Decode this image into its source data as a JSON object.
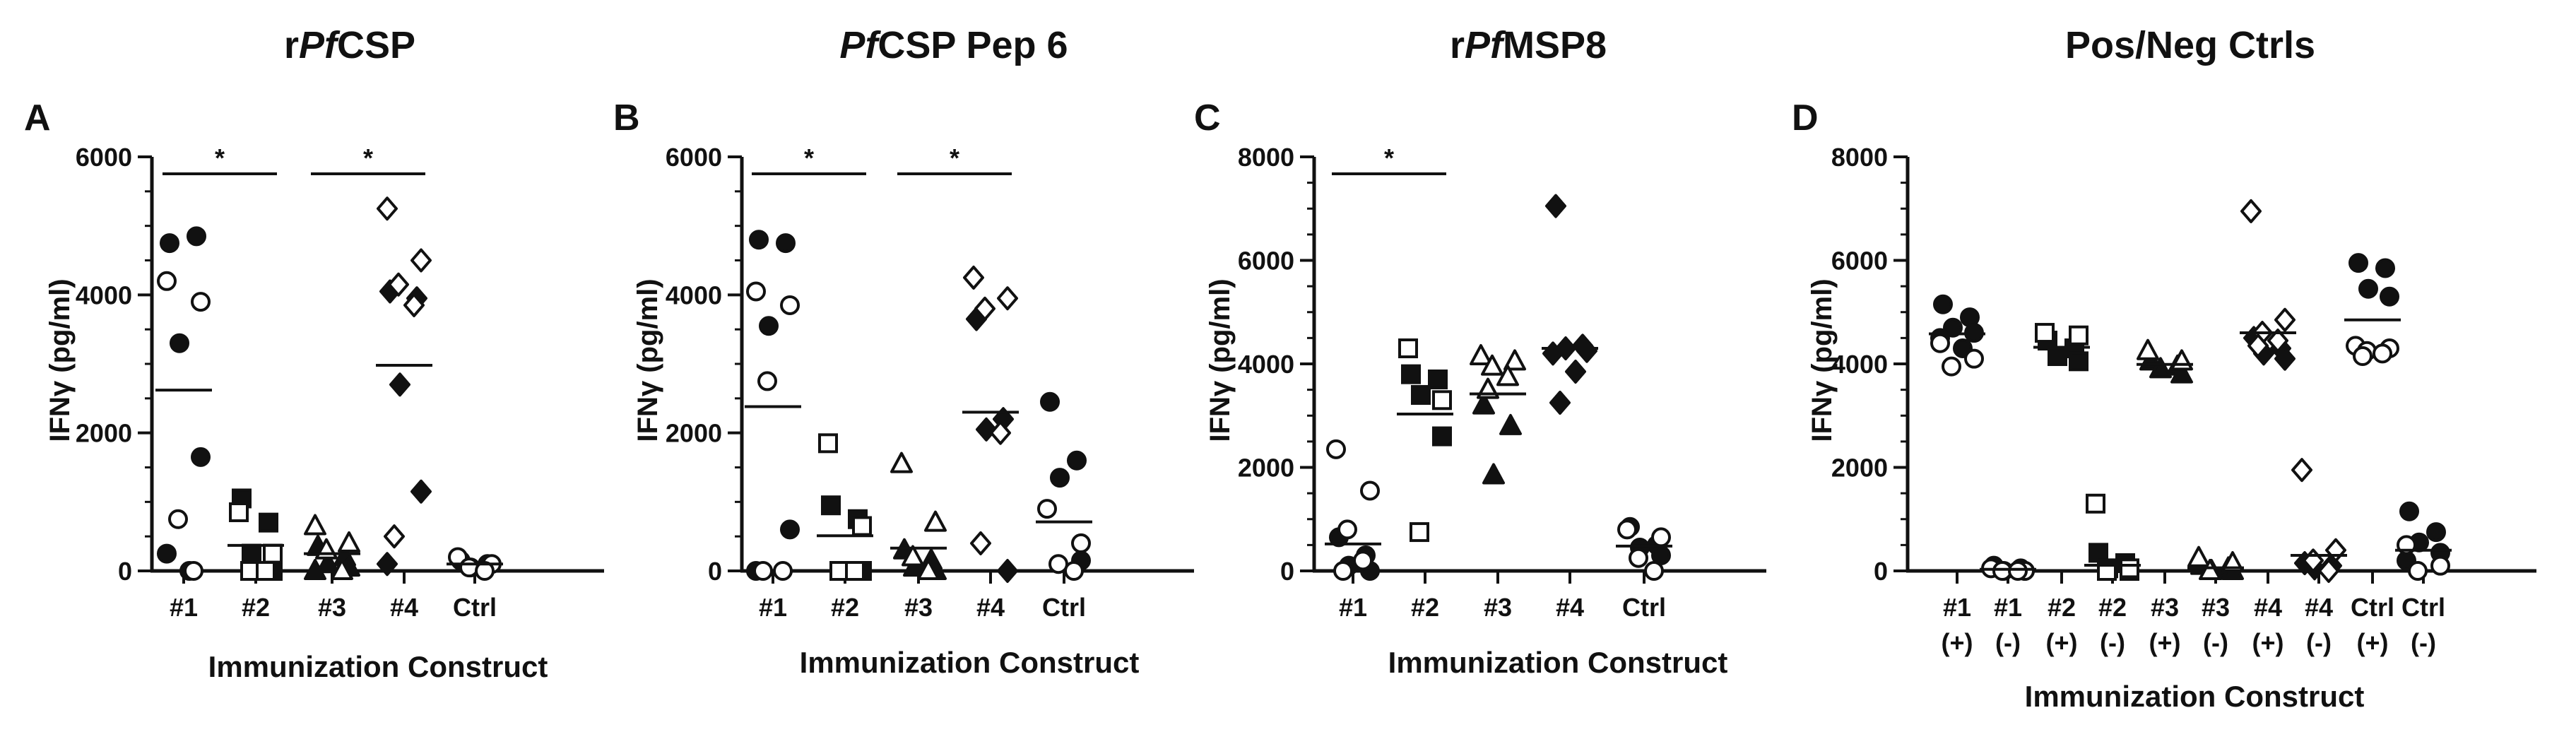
{
  "figure": {
    "ylabel": "IFNγ (pg/ml)",
    "xlabel": "Immunization Construct"
  },
  "chart_data": [
    {
      "type": "scatter",
      "panel": "A",
      "title": "rPfCSP",
      "title_parts": [
        {
          "t": "r",
          "i": false
        },
        {
          "t": "Pf",
          "i": true
        },
        {
          "t": "CSP",
          "i": false
        }
      ],
      "xlabel": "Immunization Construct",
      "ylabel": "IFNγ (pg/ml)",
      "ylim": [
        0,
        6000
      ],
      "yticks": [
        0,
        2000,
        4000,
        6000
      ],
      "categories": [
        "#1",
        "#2",
        "#3",
        "#4",
        "Ctrl"
      ],
      "groups": [
        {
          "category": "#1",
          "filled_marker": "circle",
          "open_marker": "circle",
          "filled": [
            4750,
            4850,
            3300,
            1650,
            250,
            0
          ],
          "open": [
            4200,
            3900,
            750,
            0
          ],
          "mean": 2620
        },
        {
          "category": "#2",
          "filled_marker": "square",
          "open_marker": "square",
          "filled": [
            1050,
            700,
            250,
            0
          ],
          "open": [
            850,
            250,
            0,
            0
          ],
          "mean": 370
        },
        {
          "category": "#3",
          "filled_marker": "triangle",
          "open_marker": "triangle",
          "filled": [
            350,
            200,
            100,
            50,
            0
          ],
          "open": [
            650,
            400,
            300,
            0
          ],
          "mean": 250
        },
        {
          "category": "#4",
          "filled_marker": "diamond",
          "open_marker": "diamond",
          "filled": [
            4050,
            3950,
            2700,
            1150,
            100
          ],
          "open": [
            5250,
            4500,
            4150,
            3850,
            500
          ],
          "mean": 2980
        },
        {
          "category": "Ctrl",
          "filled_marker": "circle",
          "open_marker": "circle",
          "filled": [
            150,
            100,
            50
          ],
          "open": [
            200,
            100,
            50,
            0
          ],
          "mean": 100
        }
      ],
      "significance": [
        {
          "from": "#1",
          "to": "#2",
          "label": "*"
        },
        {
          "from": "#3",
          "to": "#4",
          "label": "*"
        }
      ]
    },
    {
      "type": "scatter",
      "panel": "B",
      "title": "PfCSP Pep 6",
      "title_parts": [
        {
          "t": "Pf",
          "i": true
        },
        {
          "t": "CSP Pep 6",
          "i": false
        }
      ],
      "xlabel": "Immunization Construct",
      "ylabel": "IFNγ (pg/ml)",
      "ylim": [
        0,
        6000
      ],
      "yticks": [
        0,
        2000,
        4000,
        6000
      ],
      "categories": [
        "#1",
        "#2",
        "#3",
        "#4",
        "Ctrl"
      ],
      "groups": [
        {
          "category": "#1",
          "filled_marker": "circle",
          "open_marker": "circle",
          "filled": [
            4800,
            4750,
            3550,
            600,
            0
          ],
          "open": [
            4050,
            3850,
            2750,
            0,
            0
          ],
          "mean": 2380
        },
        {
          "category": "#2",
          "filled_marker": "square",
          "open_marker": "square",
          "filled": [
            950,
            750,
            0,
            0
          ],
          "open": [
            1850,
            650,
            0,
            0
          ],
          "mean": 510
        },
        {
          "category": "#3",
          "filled_marker": "triangle",
          "open_marker": "triangle",
          "filled": [
            300,
            150,
            50,
            0
          ],
          "open": [
            1550,
            700,
            200,
            0
          ],
          "mean": 330
        },
        {
          "category": "#4",
          "filled_marker": "diamond",
          "open_marker": "diamond",
          "filled": [
            3650,
            2200,
            2050,
            0
          ],
          "open": [
            4250,
            3950,
            3800,
            2000,
            400
          ],
          "mean": 2300
        },
        {
          "category": "Ctrl",
          "filled_marker": "circle",
          "open_marker": "circle",
          "filled": [
            2450,
            1600,
            1350,
            150
          ],
          "open": [
            900,
            400,
            100,
            0
          ],
          "mean": 710
        }
      ],
      "significance": [
        {
          "from": "#1",
          "to": "#2",
          "label": "*"
        },
        {
          "from": "#3",
          "to": "#4",
          "label": "*"
        }
      ]
    },
    {
      "type": "scatter",
      "panel": "C",
      "title": "rPfMSP8",
      "title_parts": [
        {
          "t": "r",
          "i": false
        },
        {
          "t": "Pf",
          "i": true
        },
        {
          "t": "MSP8",
          "i": false
        }
      ],
      "xlabel": "Immunization Construct",
      "ylabel": "IFNγ (pg/ml)",
      "ylim": [
        0,
        8000
      ],
      "yticks": [
        0,
        2000,
        4000,
        6000,
        8000
      ],
      "categories": [
        "#1",
        "#2",
        "#3",
        "#4",
        "Ctrl"
      ],
      "groups": [
        {
          "category": "#1",
          "filled_marker": "circle",
          "open_marker": "circle",
          "filled": [
            650,
            300,
            100,
            0
          ],
          "open": [
            2350,
            1550,
            800,
            200,
            0
          ],
          "mean": 520
        },
        {
          "category": "#2",
          "filled_marker": "square",
          "open_marker": "square",
          "filled": [
            3800,
            3700,
            3400,
            2600
          ],
          "open": [
            4300,
            3300,
            750
          ],
          "mean": 3030
        },
        {
          "category": "#3",
          "filled_marker": "triangle",
          "open_marker": "triangle",
          "filled": [
            3200,
            2800,
            1850
          ],
          "open": [
            4150,
            4050,
            3950,
            3750,
            3500
          ],
          "mean": 3420
        },
        {
          "category": "#4",
          "filled_marker": "diamond",
          "open_marker": "diamond",
          "filled": [
            7050,
            4350,
            4300,
            4250,
            4200,
            3850,
            3250
          ],
          "open": [],
          "mean": 4300
        },
        {
          "category": "Ctrl",
          "filled_marker": "circle",
          "open_marker": "circle",
          "filled": [
            850,
            500,
            450,
            300
          ],
          "open": [
            800,
            650,
            250,
            0
          ],
          "mean": 480
        }
      ],
      "significance": [
        {
          "from": "#1",
          "to": "#2",
          "label": "*"
        }
      ]
    },
    {
      "type": "scatter",
      "panel": "D",
      "title": "Pos/Neg Ctrls",
      "title_parts": [
        {
          "t": "Pos/Neg Ctrls",
          "i": false
        }
      ],
      "xlabel": "Immunization Construct",
      "ylabel": "IFNγ (pg/ml)",
      "ylim": [
        0,
        8000
      ],
      "yticks": [
        0,
        2000,
        4000,
        6000,
        8000
      ],
      "categories": [
        "#1 (+)",
        "#1 (-)",
        "#2 (+)",
        "#2 (-)",
        "#3 (+)",
        "#3 (-)",
        "#4 (+)",
        "#4 (-)",
        "Ctrl (+)",
        "Ctrl (-)"
      ],
      "category_lines": [
        [
          "#1",
          "(+)"
        ],
        [
          "#1",
          "(-)"
        ],
        [
          "#2",
          "(+)"
        ],
        [
          "#2",
          "(-)"
        ],
        [
          "#3",
          "(+)"
        ],
        [
          "#3",
          "(-)"
        ],
        [
          "#4",
          "(+)"
        ],
        [
          "#4",
          "(-)"
        ],
        [
          "Ctrl",
          "(+)"
        ],
        [
          "Ctrl",
          "(-)"
        ]
      ],
      "groups": [
        {
          "category": "#1 (+)",
          "filled_marker": "circle",
          "open_marker": "circle",
          "filled": [
            5150,
            4900,
            4700,
            4600,
            4500,
            4300
          ],
          "open": [
            4400,
            4100,
            3950
          ],
          "mean": 4580
        },
        {
          "category": "#1 (-)",
          "filled_marker": "circle",
          "open_marker": "circle",
          "filled": [
            100,
            50,
            0,
            0
          ],
          "open": [
            50,
            0,
            0,
            0
          ],
          "mean": 30
        },
        {
          "category": "#2 (+)",
          "filled_marker": "square",
          "open_marker": "square",
          "filled": [
            4450,
            4300,
            4150,
            4050
          ],
          "open": [
            4600,
            4550
          ],
          "mean": 4320
        },
        {
          "category": "#2 (-)",
          "filled_marker": "square",
          "open_marker": "square",
          "filled": [
            350,
            150,
            50,
            0
          ],
          "open": [
            1300,
            50,
            0
          ],
          "mean": 110
        },
        {
          "category": "#3 (+)",
          "filled_marker": "triangle",
          "open_marker": "triangle",
          "filled": [
            4050,
            3950,
            3900,
            3800
          ],
          "open": [
            4250,
            4050
          ],
          "mean": 3990
        },
        {
          "category": "#3 (-)",
          "filled_marker": "triangle",
          "open_marker": "triangle",
          "filled": [
            100,
            50,
            0,
            0
          ],
          "open": [
            250,
            150,
            0
          ],
          "mean": 60
        },
        {
          "category": "#4 (+)",
          "filled_marker": "diamond",
          "open_marker": "diamond",
          "filled": [
            4500,
            4300,
            4200,
            4100
          ],
          "open": [
            6950,
            4850,
            4600,
            4450,
            4350
          ],
          "mean": 4600
        },
        {
          "category": "#4 (-)",
          "filled_marker": "diamond",
          "open_marker": "diamond",
          "filled": [
            150,
            100,
            50
          ],
          "open": [
            1950,
            400,
            200,
            0
          ],
          "mean": 300
        },
        {
          "category": "Ctrl (+)",
          "filled_marker": "circle",
          "open_marker": "circle",
          "filled": [
            5950,
            5850,
            5450,
            5300
          ],
          "open": [
            4350,
            4300,
            4250,
            4200,
            4150
          ],
          "mean": 4850
        },
        {
          "category": "Ctrl (-)",
          "filled_marker": "circle",
          "open_marker": "circle",
          "filled": [
            1150,
            750,
            550,
            350,
            200
          ],
          "open": [
            500,
            100,
            0
          ],
          "mean": 400
        }
      ],
      "significance": []
    }
  ]
}
